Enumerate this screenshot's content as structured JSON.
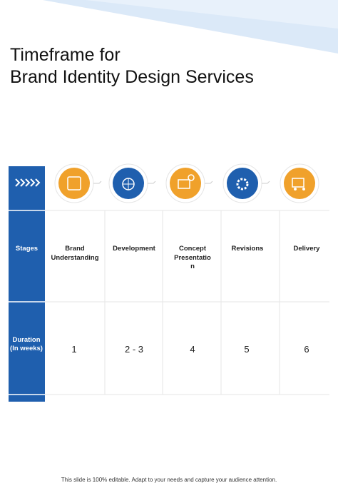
{
  "header": {
    "title_lines": [
      "Timeframe for",
      "Brand Identity Design Services"
    ]
  },
  "table": {
    "row_labels": [
      "Stages",
      "Duration (In weeks)"
    ],
    "stages": [
      "Brand Understanding",
      "Development",
      "Concept Presentation",
      "Revisions",
      "Delivery"
    ],
    "durations": [
      "1",
      "2 - 3",
      "4",
      "5",
      "6"
    ]
  },
  "footer": {
    "note": "This slide is 100% editable. Adapt to your needs and capture your audience attention."
  }
}
